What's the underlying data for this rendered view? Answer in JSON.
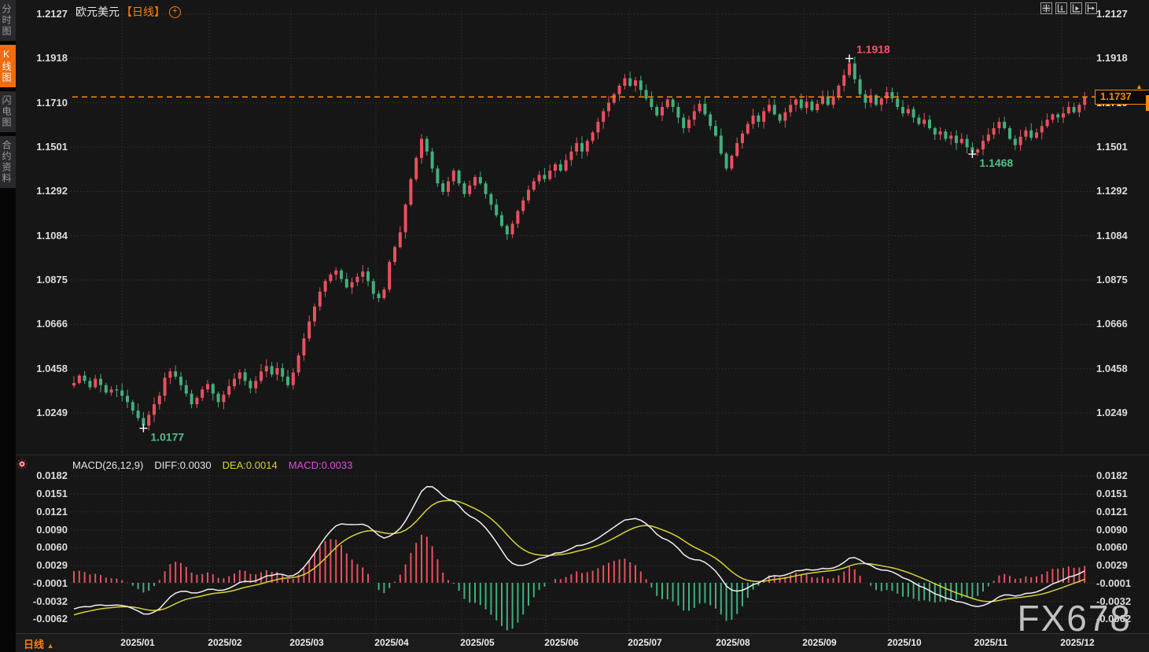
{
  "header": {
    "symbol": "欧元美元",
    "period": "【日线】",
    "plus_icon": "⊕"
  },
  "sidebar": {
    "items": [
      {
        "label": "分时图",
        "active": false
      },
      {
        "label": "K线图",
        "active": true
      },
      {
        "label": "闪电图",
        "active": false
      },
      {
        "label": "合约资料",
        "active": false
      }
    ]
  },
  "toolbar": {
    "icons": [
      "crosshair-move",
      "y-axis-fit",
      "x-axis-play",
      "scroll-to-latest"
    ]
  },
  "main_chart": {
    "current_price": {
      "value": "1.1737"
    },
    "markers": [
      {
        "index": 13,
        "price": 1.0177,
        "side": "low",
        "label": "1.0177"
      },
      {
        "index": 145,
        "price": 1.1918,
        "side": "high",
        "label": "1.1918"
      },
      {
        "index": 168,
        "price": 1.1468,
        "side": "low",
        "label": "1.1468"
      }
    ]
  },
  "macd_panel": {
    "title": "MACD(26,12,9)",
    "diff_label": "DIFF:0.0030",
    "dea_label": "DEA:0.0014",
    "macd_label": "MACD:0.0033"
  },
  "bottom_bar": {
    "period_label": "日线",
    "arrow": "▲"
  },
  "watermark": "FX678",
  "colors": {
    "up": "#e8505e",
    "down": "#43ae7c",
    "accent_orange": "#ff8a00",
    "diff_line": "#f0f0f0",
    "dea_line": "#d8d22e",
    "macd_label": "#e14ae1",
    "marker_high": "#f0546a",
    "marker_low": "#4fbf87",
    "grid": "#3a3a3a",
    "bg": "#161616"
  },
  "chart_data": {
    "type": "candlestick+macd",
    "title": "欧元美元 (EUR/USD) 日线",
    "interval": "daily",
    "x_labels": [
      "2025/01",
      "2025/02",
      "2025/03",
      "2025/04",
      "2025/05",
      "2025/06",
      "2025/07",
      "2025/08",
      "2025/09",
      "2025/10",
      "2025/11",
      "2025/12"
    ],
    "y_axis": [
      1.2127,
      1.1918,
      1.171,
      1.1501,
      1.1292,
      1.1084,
      1.0875,
      1.0666,
      1.0458,
      1.0249
    ],
    "macd_axis": [
      0.0182,
      0.0151,
      0.0121,
      0.009,
      0.006,
      0.0029,
      -0.0001,
      -0.0032,
      -0.0062
    ],
    "macd_params": "26,12,9",
    "last_price": 1.1737,
    "year_high": 1.1918,
    "year_low": 1.0177,
    "q4_low": 1.1468,
    "closes": [
      1.039,
      1.0425,
      1.04,
      1.037,
      1.041,
      1.038,
      1.0345,
      1.036,
      1.0355,
      1.033,
      1.03,
      1.026,
      1.0225,
      1.019,
      1.024,
      1.029,
      1.033,
      1.0415,
      1.0445,
      1.042,
      1.038,
      1.034,
      1.029,
      1.032,
      1.036,
      1.0385,
      1.034,
      1.03,
      1.0335,
      1.0375,
      1.041,
      1.044,
      1.04,
      1.0365,
      1.04,
      1.0445,
      1.047,
      1.043,
      1.046,
      1.042,
      1.038,
      1.044,
      1.052,
      1.06,
      1.068,
      1.075,
      1.082,
      1.087,
      1.09,
      1.092,
      1.088,
      1.084,
      1.0865,
      1.089,
      1.0915,
      1.087,
      1.081,
      1.079,
      1.083,
      1.096,
      1.103,
      1.11,
      1.123,
      1.135,
      1.145,
      1.154,
      1.148,
      1.14,
      1.133,
      1.129,
      1.134,
      1.139,
      1.133,
      1.128,
      1.132,
      1.136,
      1.133,
      1.128,
      1.123,
      1.118,
      1.113,
      1.109,
      1.114,
      1.12,
      1.125,
      1.13,
      1.134,
      1.137,
      1.135,
      1.139,
      1.142,
      1.139,
      1.144,
      1.148,
      1.152,
      1.148,
      1.153,
      1.157,
      1.162,
      1.167,
      1.171,
      1.175,
      1.179,
      1.1825,
      1.179,
      1.1815,
      1.177,
      1.173,
      1.169,
      1.165,
      1.169,
      1.1725,
      1.169,
      1.164,
      1.159,
      1.163,
      1.167,
      1.1705,
      1.1655,
      1.16,
      1.1555,
      1.147,
      1.14,
      1.146,
      1.152,
      1.1565,
      1.161,
      1.165,
      1.162,
      1.167,
      1.17,
      1.1655,
      1.1625,
      1.1665,
      1.17,
      1.1725,
      1.1685,
      1.1715,
      1.1675,
      1.1705,
      1.174,
      1.17,
      1.174,
      1.179,
      1.184,
      1.1895,
      1.182,
      1.175,
      1.171,
      1.1745,
      1.17,
      1.173,
      1.176,
      1.173,
      1.169,
      1.166,
      1.168,
      1.164,
      1.161,
      1.163,
      1.159,
      1.156,
      1.1575,
      1.154,
      1.1555,
      1.152,
      1.154,
      1.15,
      1.1475,
      1.149,
      1.153,
      1.156,
      1.159,
      1.162,
      1.159,
      1.154,
      1.151,
      1.155,
      1.158,
      1.1545,
      1.157,
      1.16,
      1.163,
      1.1655,
      1.164,
      1.166,
      1.169,
      1.1665,
      1.17,
      1.1737
    ]
  }
}
